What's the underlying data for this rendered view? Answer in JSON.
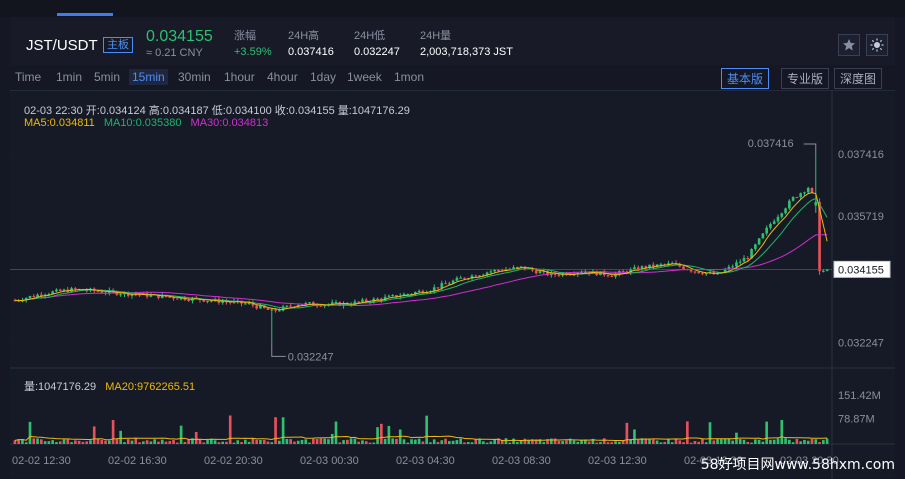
{
  "header": {
    "pair": "JST/USDT",
    "board": "主板",
    "price": "0.034155",
    "price_cny": "≈ 0.21 CNY",
    "stats": [
      {
        "label": "涨幅",
        "value": "+3.59%",
        "up": true
      },
      {
        "label": "24H高",
        "value": "0.037416"
      },
      {
        "label": "24H低",
        "value": "0.032247"
      },
      {
        "label": "24H量",
        "value": "2,003,718,373 JST"
      }
    ],
    "icons": [
      "star-icon",
      "sun-icon"
    ]
  },
  "intervals": [
    "Time",
    "1min",
    "5min",
    "15min",
    "30min",
    "1hour",
    "4hour",
    "1day",
    "1week",
    "1mon"
  ],
  "active_interval": "15min",
  "views": [
    {
      "label": "基本版",
      "active": true
    },
    {
      "label": "专业版",
      "active": false
    },
    {
      "label": "深度图",
      "active": false
    }
  ],
  "legend": {
    "ohlc": "02-03 22:30   开:0.034124  高:0.034187  低:0.034100  收:0.034155  量:1047176.29",
    "ma5": "MA5:0.034811",
    "ma10": "MA10:0.035380",
    "ma30": "MA30:0.034813",
    "vol": "量:1047176.29",
    "vol_ma20": "MA20:9762265.51"
  },
  "colors": {
    "up": "#2fbf71",
    "down": "#e8505b",
    "ma5": "#f0b90b",
    "ma10": "#1fb36b",
    "ma30": "#d12fd1",
    "accent": "#4d8cf5"
  },
  "chart_data": {
    "type": "candlestick",
    "y_ticks": [
      "0.037416",
      "0.035719",
      "0.034155",
      "0.032247"
    ],
    "y_tick_values": [
      0.037416,
      0.035719,
      0.034155,
      0.032247
    ],
    "ylim": [
      0.0316,
      0.0381
    ],
    "current_price_label": "0.034155",
    "high_marker": "0.037416",
    "low_marker": "0.032247",
    "x_labels": [
      "02-02 12:30",
      "02-02 16:30",
      "02-02 20:30",
      "02-03 00:30",
      "02-03 04:30",
      "02-03 08:30",
      "02-03 12:30",
      "02-03 16:30",
      "02-03 20:30"
    ],
    "volume_ticks": [
      "151.42M",
      "78.87M"
    ],
    "volume_tick_values": [
      151.42,
      78.87
    ],
    "close_anchors": [
      [
        0,
        0.0334
      ],
      [
        8,
        0.0336
      ],
      [
        16,
        0.0337
      ],
      [
        28,
        0.0336
      ],
      [
        40,
        0.0335
      ],
      [
        52,
        0.0334
      ],
      [
        62,
        0.0333
      ],
      [
        68,
        0.0331
      ],
      [
        75,
        0.0333
      ],
      [
        88,
        0.0333
      ],
      [
        100,
        0.0335
      ],
      [
        110,
        0.0337
      ],
      [
        118,
        0.034
      ],
      [
        126,
        0.0342
      ],
      [
        134,
        0.0343
      ],
      [
        142,
        0.0341
      ],
      [
        150,
        0.0342
      ],
      [
        158,
        0.0341
      ],
      [
        166,
        0.0343
      ],
      [
        174,
        0.0344
      ],
      [
        180,
        0.0342
      ],
      [
        186,
        0.0341
      ],
      [
        194,
        0.0346
      ],
      [
        200,
        0.0355
      ],
      [
        206,
        0.0362
      ],
      [
        210,
        0.0365
      ],
      [
        212,
        0.0361
      ],
      [
        213,
        0.0342
      ],
      [
        215,
        0.0342
      ]
    ]
  },
  "watermark": "58好项目网www.58hxm.com"
}
